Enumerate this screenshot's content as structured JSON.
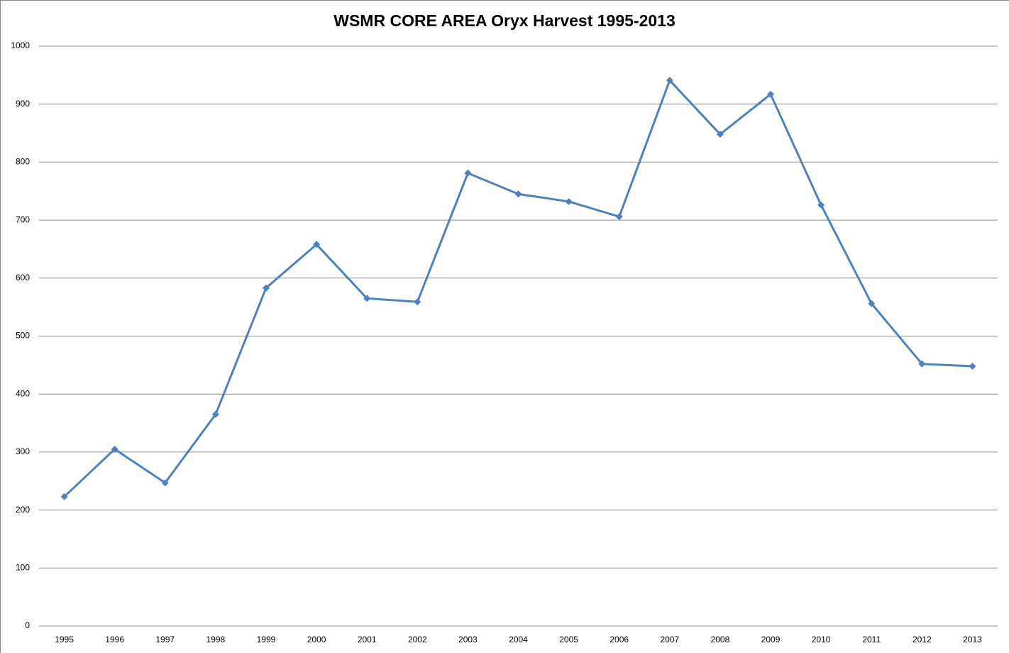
{
  "chart_data": {
    "type": "line",
    "title": "WSMR CORE AREA Oryx Harvest 1995-2013",
    "categories": [
      "1995",
      "1996",
      "1997",
      "1998",
      "1999",
      "2000",
      "2001",
      "2002",
      "2003",
      "2004",
      "2005",
      "2006",
      "2007",
      "2008",
      "2009",
      "2010",
      "2011",
      "2012",
      "2013"
    ],
    "series": [
      {
        "name": "Oryx Harvest",
        "color": "#4f81bd",
        "values": [
          223,
          305,
          247,
          365,
          583,
          658,
          565,
          559,
          781,
          745,
          732,
          706,
          941,
          848,
          917,
          726,
          556,
          452,
          448
        ]
      }
    ],
    "ylim": [
      0,
      1000
    ],
    "yticks": [
      0,
      100,
      200,
      300,
      400,
      500,
      600,
      700,
      800,
      900,
      1000
    ],
    "grid": true
  }
}
